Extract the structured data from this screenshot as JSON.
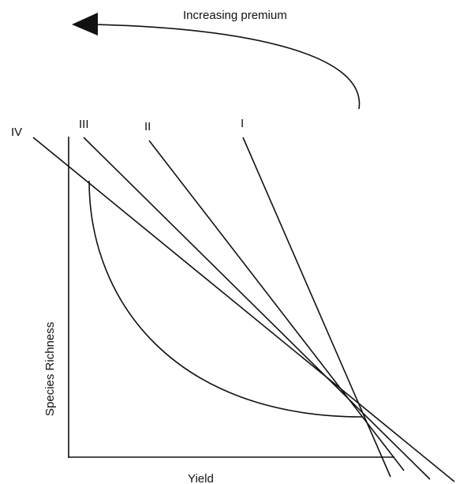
{
  "arrow": {
    "label": "Increasing premium"
  },
  "axes": {
    "x_label": "Yield",
    "y_label": "Species Richness"
  },
  "lines": [
    {
      "id": "I",
      "label": "I"
    },
    {
      "id": "II",
      "label": "II"
    },
    {
      "id": "III",
      "label": "III"
    },
    {
      "id": "IV",
      "label": "IV"
    }
  ],
  "colors": {
    "ink": "#111111",
    "background": "#ffffff"
  }
}
